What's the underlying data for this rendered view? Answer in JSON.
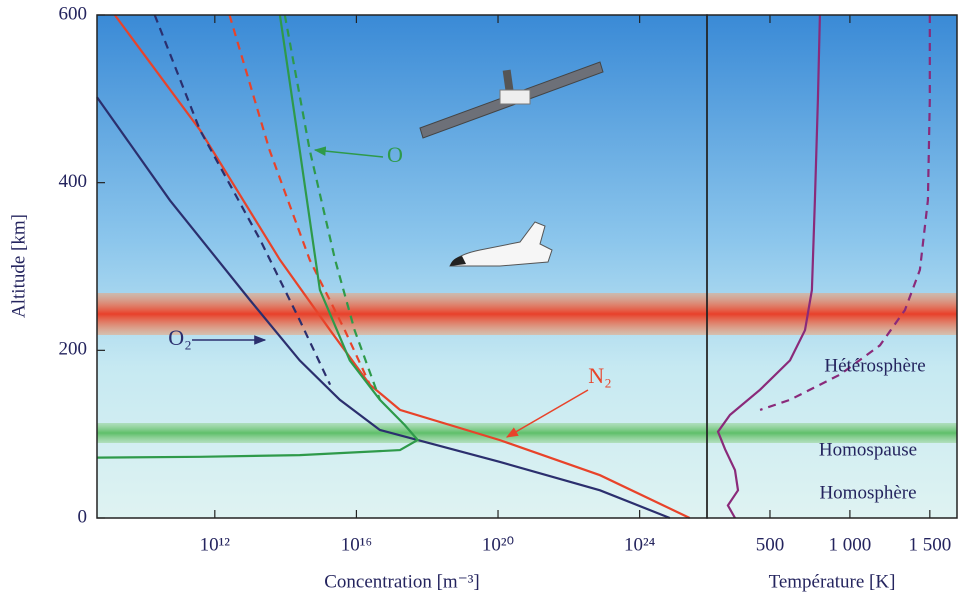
{
  "chart_data": [
    {
      "type": "line",
      "xscale": "log",
      "xlabel": "Concentration [m⁻³]",
      "ylabel": "Altitude [km]",
      "xlim": [
        470000000.0,
        8e+25
      ],
      "ylim": [
        0,
        600
      ],
      "xticks": [
        {
          "value": 1000000000000.0,
          "label": "10¹²"
        },
        {
          "value": 1e+16,
          "label": "10¹⁶"
        },
        {
          "value": 1e+20,
          "label": "10²⁰"
        },
        {
          "value": 1e+24,
          "label": "10²⁴"
        }
      ],
      "yticks": [
        0,
        200,
        400,
        600
      ],
      "series": [
        {
          "name": "N₂",
          "color": "#e8432a",
          "dash": false,
          "x": [
            1500000000.0,
            380000000000.0,
            69000000000000.0,
            1800000000000000.0,
            2.4e+16,
            1.7e+17,
            1.1e+20,
            7.6e+22,
            2.6e+25
          ],
          "y": [
            600,
            463,
            308,
            224,
            159,
            129,
            93,
            51,
            0
          ]
        },
        {
          "color": "#e8432a",
          "dash": true,
          "x": [
            2600000000000.0,
            35000000000000.0,
            480000000000000.0,
            4700000000000000.0,
            2.4e+16
          ],
          "y": [
            600,
            439,
            308,
            224,
            159
          ]
        },
        {
          "name": "O₂",
          "color": "#2b2f6e",
          "dash": false,
          "x": [
            470000000.0,
            54000000000.0,
            9800000000000.0,
            250000000000000.0,
            3400000000000000.0,
            4.6e+16,
            1.1e+20,
            7.6e+22,
            7.1e+24
          ],
          "y": [
            502,
            379,
            260,
            188,
            141,
            105,
            67,
            33,
            0
          ]
        },
        {
          "color": "#2b2f6e",
          "dash": true,
          "x": [
            20000000000.0,
            380000000000.0,
            19000000000000.0,
            250000000000000.0,
            1800000000000000.0
          ],
          "y": [
            600,
            463,
            332,
            236,
            159
          ]
        },
        {
          "name": "O",
          "color": "#2e9a4a",
          "dash": false,
          "x": [
            69000000000000.0,
            250000000000000.0,
            930000000000000.0,
            6500000000000000.0,
            4.6e+16,
            2.3e+17,
            5.4e+17,
            1.7e+17,
            250000000000000.0,
            380000000000.0,
            470000000.0
          ],
          "y": [
            600,
            439,
            272,
            188,
            141,
            111,
            93,
            81,
            75,
            73,
            72
          ]
        },
        {
          "color": "#2e9a4a",
          "dash": true,
          "x": [
            95000000000000.0,
            480000000000000.0,
            2500000000000000.0,
            8900000000000000.0,
            4.6e+16
          ],
          "y": [
            600,
            439,
            308,
            224,
            141
          ]
        }
      ]
    },
    {
      "type": "line",
      "xlabel": "Température [K]",
      "xlim": [
        106,
        1670
      ],
      "ylim": [
        0,
        600
      ],
      "xticks": [
        500,
        {
          "value": 1000,
          "label": "1 000"
        },
        {
          "value": 1500,
          "label": "1 500"
        }
      ],
      "annotations": [
        "Hétérosphère",
        "Homospause",
        "Homosphère"
      ],
      "series": [
        {
          "color": "#8a2a7a",
          "dash": false,
          "x": [
            812,
            800,
            781,
            762,
            719,
            625,
            438,
            250,
            175,
            219,
            281,
            300,
            237,
            281
          ],
          "y": [
            600,
            499,
            379,
            272,
            224,
            188,
            153,
            123,
            103,
            82,
            57,
            33,
            15,
            0
          ]
        },
        {
          "color": "#8a2a7a",
          "dash": true,
          "x": [
            1500,
            1500,
            1488,
            1438,
            1344,
            1188,
            938,
            625,
            438
          ],
          "y": [
            600,
            499,
            379,
            296,
            248,
            206,
            171,
            141,
            129
          ]
        }
      ]
    }
  ]
}
